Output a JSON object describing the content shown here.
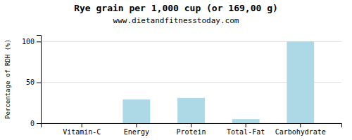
{
  "chart_data": {
    "type": "bar",
    "title": "Rye grain per 1,000 cup (or 169,00 g)",
    "subtitle": "www.dietandfitnesstoday.com",
    "categories": [
      "Vitamin-C",
      "Energy",
      "Protein",
      "Total-Fat",
      "Carbohydrate"
    ],
    "values": [
      0,
      29,
      31,
      5,
      100
    ],
    "color": "#add8e6",
    "ylabel": "Percentage of RDH (%)",
    "ylim": [
      0,
      108
    ],
    "yticks": [
      0,
      50,
      100
    ],
    "grid": true
  }
}
